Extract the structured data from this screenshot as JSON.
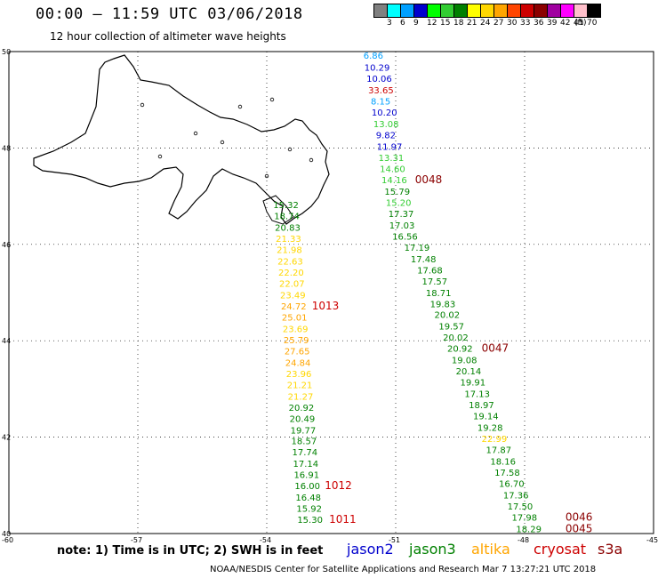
{
  "title": "00:00 – 11:59 UTC 03/06/2018",
  "subtitle": "12 hour collection of altimeter wave heights",
  "legend": {
    "unit": "(ft)",
    "swatches": [
      {
        "color": "#808080",
        "label": "3"
      },
      {
        "color": "#00ffff",
        "label": "6"
      },
      {
        "color": "#00a0ff",
        "label": "9"
      },
      {
        "color": "#0000cd",
        "label": "12"
      },
      {
        "color": "#00ff00",
        "label": "15"
      },
      {
        "color": "#32cd32",
        "label": "18"
      },
      {
        "color": "#008000",
        "label": "21"
      },
      {
        "color": "#ffff00",
        "label": "24"
      },
      {
        "color": "#ffd700",
        "label": "27"
      },
      {
        "color": "#ffa500",
        "label": "30"
      },
      {
        "color": "#ff4500",
        "label": "33"
      },
      {
        "color": "#cd0000",
        "label": "36"
      },
      {
        "color": "#8b0000",
        "label": "39"
      },
      {
        "color": "#a000a0",
        "label": "42"
      },
      {
        "color": "#ff00ff",
        "label": "45"
      },
      {
        "color": "#ffc0cb",
        "label": "70"
      },
      {
        "color": "#000000",
        "label": ""
      }
    ]
  },
  "axes": {
    "lat_ticks": [
      "50",
      "48",
      "46",
      "44",
      "42",
      "40"
    ],
    "lon_ticks": [
      "-60",
      "-57",
      "-54",
      "-51",
      "-48",
      "-45"
    ]
  },
  "tracks": [
    {
      "name": "jason2",
      "label_time": "",
      "points": [
        {
          "lat": 49.85,
          "lon": -51.75,
          "value": "6.86",
          "color": "#00a0ff"
        },
        {
          "lat": 49.6,
          "lon": -51.73,
          "value": "10.29",
          "color": "#0000cd"
        },
        {
          "lat": 49.37,
          "lon": -51.68,
          "value": "10.06",
          "color": "#0000cd"
        },
        {
          "lat": 49.13,
          "lon": -51.64,
          "value": "33.65",
          "color": "#cd0000"
        },
        {
          "lat": 48.9,
          "lon": -51.58,
          "value": "8.15",
          "color": "#00a0ff"
        },
        {
          "lat": 48.67,
          "lon": -51.56,
          "value": "10.20",
          "color": "#0000cd"
        },
        {
          "lat": 48.43,
          "lon": -51.52,
          "value": "13.08",
          "color": "#32cd32"
        },
        {
          "lat": 48.2,
          "lon": -51.46,
          "value": "9.82",
          "color": "#0000cd"
        },
        {
          "lat": 47.96,
          "lon": -51.44,
          "value": "11.97",
          "color": "#0000cd"
        }
      ]
    },
    {
      "name": "jason3-east",
      "label_time": "0048",
      "points": [
        {
          "lat": 47.73,
          "lon": -51.4,
          "value": "13.31",
          "color": "#32cd32"
        },
        {
          "lat": 47.5,
          "lon": -51.37,
          "value": "14.60",
          "color": "#32cd32"
        },
        {
          "lat": 47.27,
          "lon": -51.33,
          "value": "14.16",
          "color": "#32cd32"
        },
        {
          "lat": 47.03,
          "lon": -51.26,
          "value": "15.79",
          "color": "#008000"
        },
        {
          "lat": 46.8,
          "lon": -51.23,
          "value": "15.20",
          "color": "#32cd32"
        },
        {
          "lat": 46.57,
          "lon": -51.17,
          "value": "17.37",
          "color": "#008000"
        },
        {
          "lat": 46.33,
          "lon": -51.15,
          "value": "17.03",
          "color": "#008000"
        },
        {
          "lat": 46.1,
          "lon": -51.08,
          "value": "16.56",
          "color": "#008000"
        },
        {
          "lat": 45.87,
          "lon": -50.8,
          "value": "17.19",
          "color": "#008000"
        },
        {
          "lat": 45.63,
          "lon": -50.65,
          "value": "17.48",
          "color": "#008000"
        },
        {
          "lat": 45.4,
          "lon": -50.5,
          "value": "17.68",
          "color": "#008000"
        },
        {
          "lat": 45.17,
          "lon": -50.39,
          "value": "17.57",
          "color": "#008000"
        },
        {
          "lat": 44.93,
          "lon": -50.3,
          "value": "18.71",
          "color": "#008000"
        },
        {
          "lat": 44.7,
          "lon": -50.2,
          "value": "19.83",
          "color": "#008000"
        },
        {
          "lat": 44.47,
          "lon": -50.1,
          "value": "20.02",
          "color": "#008000"
        },
        {
          "lat": 44.23,
          "lon": -50.0,
          "value": "19.57",
          "color": "#008000"
        },
        {
          "lat": 44.0,
          "lon": -49.9,
          "value": "20.02",
          "color": "#008000"
        },
        {
          "lat": 43.77,
          "lon": -49.8,
          "value": "20.92",
          "color": "#008000"
        },
        {
          "lat": 43.53,
          "lon": -49.7,
          "value": "19.08",
          "color": "#008000"
        },
        {
          "lat": 43.3,
          "lon": -49.6,
          "value": "20.14",
          "color": "#008000"
        },
        {
          "lat": 43.07,
          "lon": -49.5,
          "value": "19.91",
          "color": "#008000"
        },
        {
          "lat": 42.83,
          "lon": -49.4,
          "value": "17.13",
          "color": "#008000"
        },
        {
          "lat": 42.6,
          "lon": -49.3,
          "value": "18.97",
          "color": "#008000"
        },
        {
          "lat": 42.37,
          "lon": -49.2,
          "value": "19.14",
          "color": "#008000"
        },
        {
          "lat": 42.13,
          "lon": -49.1,
          "value": "19.28",
          "color": "#008000"
        },
        {
          "lat": 41.9,
          "lon": -49.0,
          "value": "22.99",
          "color": "#ffd700"
        },
        {
          "lat": 41.67,
          "lon": -48.9,
          "value": "17.87",
          "color": "#008000"
        },
        {
          "lat": 41.43,
          "lon": -48.8,
          "value": "18.16",
          "color": "#008000"
        },
        {
          "lat": 41.2,
          "lon": -48.7,
          "value": "17.58",
          "color": "#008000"
        },
        {
          "lat": 40.97,
          "lon": -48.6,
          "value": "16.70",
          "color": "#008000"
        },
        {
          "lat": 40.73,
          "lon": -48.5,
          "value": "17.36",
          "color": "#008000"
        },
        {
          "lat": 40.5,
          "lon": -48.4,
          "value": "17.50",
          "color": "#008000"
        },
        {
          "lat": 40.27,
          "lon": -48.3,
          "value": "17.98",
          "color": "#008000"
        },
        {
          "lat": 40.03,
          "lon": -48.2,
          "value": "18.29",
          "color": "#008000"
        }
      ]
    },
    {
      "name": "jason3-west",
      "label_time": "1013",
      "points": [
        {
          "lat": 46.75,
          "lon": -53.85,
          "value": "15.32",
          "color": "#008000"
        },
        {
          "lat": 46.52,
          "lon": -53.83,
          "value": "18.74",
          "color": "#008000"
        },
        {
          "lat": 46.28,
          "lon": -53.81,
          "value": "20.83",
          "color": "#008000"
        },
        {
          "lat": 46.05,
          "lon": -53.79,
          "value": "21.33",
          "color": "#ffd700"
        },
        {
          "lat": 45.82,
          "lon": -53.77,
          "value": "21.98",
          "color": "#ffd700"
        },
        {
          "lat": 45.58,
          "lon": -53.75,
          "value": "22.63",
          "color": "#ffd700"
        },
        {
          "lat": 45.35,
          "lon": -53.73,
          "value": "22.20",
          "color": "#ffd700"
        },
        {
          "lat": 45.12,
          "lon": -53.71,
          "value": "22.07",
          "color": "#ffd700"
        },
        {
          "lat": 44.88,
          "lon": -53.69,
          "value": "23.49",
          "color": "#ffd700"
        },
        {
          "lat": 44.65,
          "lon": -53.67,
          "value": "24.72",
          "color": "#ffa500"
        },
        {
          "lat": 44.42,
          "lon": -53.65,
          "value": "25.01",
          "color": "#ffa500"
        },
        {
          "lat": 44.18,
          "lon": -53.63,
          "value": "23.69",
          "color": "#ffd700"
        },
        {
          "lat": 43.95,
          "lon": -53.61,
          "value": "25.79",
          "color": "#ffa500"
        },
        {
          "lat": 43.72,
          "lon": -53.59,
          "value": "27.65",
          "color": "#ffa500"
        },
        {
          "lat": 43.48,
          "lon": -53.57,
          "value": "24.84",
          "color": "#ffa500"
        },
        {
          "lat": 43.25,
          "lon": -53.55,
          "value": "23.96",
          "color": "#ffd700"
        },
        {
          "lat": 43.02,
          "lon": -53.53,
          "value": "21.21",
          "color": "#ffd700"
        },
        {
          "lat": 42.78,
          "lon": -53.51,
          "value": "21.27",
          "color": "#ffd700"
        },
        {
          "lat": 42.55,
          "lon": -53.49,
          "value": "20.92",
          "color": "#008000"
        },
        {
          "lat": 42.32,
          "lon": -53.47,
          "value": "20.49",
          "color": "#008000"
        },
        {
          "lat": 42.08,
          "lon": -53.45,
          "value": "19.77",
          "color": "#008000"
        },
        {
          "lat": 41.85,
          "lon": -53.43,
          "value": "18.57",
          "color": "#008000"
        },
        {
          "lat": 41.62,
          "lon": -53.41,
          "value": "17.74",
          "color": "#008000"
        },
        {
          "lat": 41.38,
          "lon": -53.39,
          "value": "17.14",
          "color": "#008000"
        },
        {
          "lat": 41.15,
          "lon": -53.37,
          "value": "16.91",
          "color": "#008000"
        },
        {
          "lat": 40.92,
          "lon": -53.35,
          "value": "16.00",
          "color": "#008000"
        },
        {
          "lat": 40.68,
          "lon": -53.33,
          "value": "16.48",
          "color": "#008000"
        },
        {
          "lat": 40.45,
          "lon": -53.31,
          "value": "15.92",
          "color": "#008000"
        },
        {
          "lat": 40.22,
          "lon": -53.29,
          "value": "15.30",
          "color": "#008000"
        }
      ]
    }
  ],
  "time_labels": [
    {
      "text": "0048",
      "lat": 47.27,
      "lon": -50.55,
      "color": "#8b0000"
    },
    {
      "text": "1013",
      "lat": 44.65,
      "lon": -52.95,
      "color": "#cd0000"
    },
    {
      "text": "0047",
      "lat": 43.77,
      "lon": -49.0,
      "color": "#8b0000"
    },
    {
      "text": "1012",
      "lat": 40.92,
      "lon": -52.65,
      "color": "#cd0000"
    },
    {
      "text": "1011",
      "lat": 40.22,
      "lon": -52.55,
      "color": "#cd0000"
    },
    {
      "text": "0046",
      "lat": 40.27,
      "lon": -47.05,
      "color": "#8b0000"
    },
    {
      "text": "0045",
      "lat": 40.03,
      "lon": -47.05,
      "color": "#8b0000"
    }
  ],
  "note": "note:  1) Time is in UTC;  2) SWH is in feet",
  "satellites": [
    {
      "name": "jason2",
      "color": "#0000cd"
    },
    {
      "name": "jason3",
      "color": "#008000"
    },
    {
      "name": "altika",
      "color": "#ffa500"
    },
    {
      "name": "cryosat",
      "color": "#cd0000"
    },
    {
      "name": "s3a",
      "color": "#8b0000"
    }
  ],
  "footer": "NOAA/NESDIS Center for Satellite Applications and Research    Mar  7 13:27:21 UTC 2018"
}
